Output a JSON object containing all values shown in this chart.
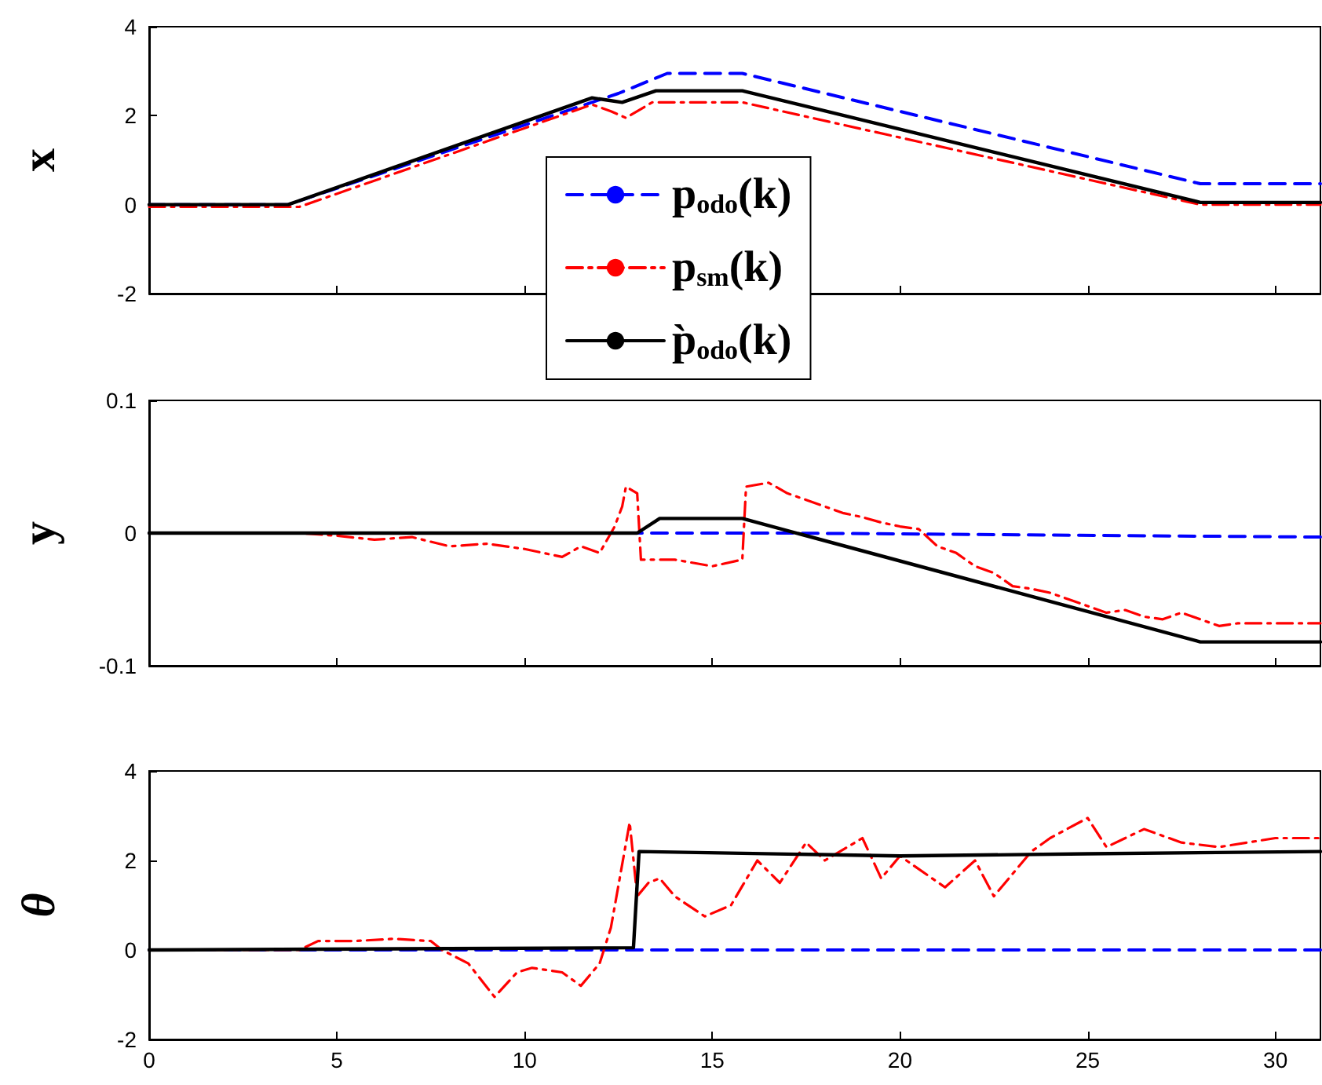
{
  "chart_data": [
    {
      "type": "line",
      "ylabel": "x",
      "xlim": [
        0,
        31.2
      ],
      "xticks": [
        0,
        5,
        10,
        15,
        20,
        25,
        30
      ],
      "ylim": [
        -2,
        4
      ],
      "yticks": [
        -2,
        0,
        2,
        4
      ],
      "tick_labels": "y",
      "grid": false,
      "marker": "none",
      "legend": "center",
      "series": [
        {
          "name": "p$_{odo}$(k)",
          "color": "#0000ff",
          "line_style": "dashed",
          "x": [
            0,
            3.7,
            12.5,
            13.8,
            15.8,
            28,
            31.2
          ],
          "values": [
            0,
            0,
            2.5,
            2.95,
            2.95,
            0.47,
            0.47
          ]
        },
        {
          "name": "p$_{sm}$(k)",
          "color": "#ff0000",
          "line_style": "dashdot",
          "x": [
            0,
            4,
            11.8,
            12.3,
            12.7,
            13.4,
            15.8,
            28,
            31.2
          ],
          "values": [
            -0.05,
            -0.05,
            2.25,
            2.1,
            1.95,
            2.3,
            2.3,
            0,
            0
          ]
        },
        {
          "name": "p̀$_{odo}$(k)",
          "color": "#000000",
          "line_style": "solid",
          "x": [
            0,
            3.7,
            11.8,
            12.2,
            12.6,
            13.5,
            15.8,
            28,
            31.2
          ],
          "values": [
            0,
            0,
            2.4,
            2.35,
            2.3,
            2.56,
            2.56,
            0.05,
            0.05
          ]
        }
      ]
    },
    {
      "type": "line",
      "ylabel": "y",
      "xlim": [
        0,
        31.2
      ],
      "xticks": [
        0,
        5,
        10,
        15,
        20,
        25,
        30
      ],
      "ylim": [
        -0.1,
        0.1
      ],
      "yticks": [
        -0.1,
        0,
        0.1
      ],
      "tick_labels": "y",
      "grid": false,
      "marker": "none",
      "series": [
        {
          "color": "#0000ff",
          "line_style": "dashed",
          "x": [
            0,
            17,
            31.2
          ],
          "values": [
            0,
            0,
            -0.003
          ]
        },
        {
          "color": "#ff0000",
          "line_style": "dashdot",
          "x": [
            0,
            4,
            5,
            6,
            7,
            8,
            9,
            10,
            11,
            11.5,
            12,
            12.4,
            12.6,
            12.7,
            13,
            13.1,
            14,
            15,
            15.8,
            15.9,
            16.5,
            17,
            17.5,
            18,
            18.5,
            19,
            19.5,
            20,
            20.5,
            21,
            21.5,
            22,
            22.5,
            23,
            23.5,
            24,
            24.5,
            25,
            25.5,
            26,
            26.5,
            27,
            27.5,
            28,
            28.5,
            29,
            30,
            31.2
          ],
          "values": [
            0,
            0,
            -0.002,
            -0.005,
            -0.003,
            -0.01,
            -0.008,
            -0.012,
            -0.018,
            -0.01,
            -0.015,
            0.005,
            0.02,
            0.035,
            0.03,
            -0.02,
            -0.02,
            -0.025,
            -0.02,
            0.035,
            0.038,
            0.03,
            0.025,
            0.02,
            0.015,
            0.012,
            0.008,
            0.005,
            0.003,
            -0.01,
            -0.015,
            -0.025,
            -0.03,
            -0.04,
            -0.042,
            -0.045,
            -0.05,
            -0.055,
            -0.06,
            -0.058,
            -0.063,
            -0.065,
            -0.06,
            -0.065,
            -0.07,
            -0.068,
            -0.068,
            -0.068
          ]
        },
        {
          "color": "#000000",
          "line_style": "solid",
          "x": [
            0,
            3.7,
            13,
            13.6,
            15.8,
            28,
            31.2
          ],
          "values": [
            0,
            0,
            0,
            0.011,
            0.011,
            -0.082,
            -0.082
          ]
        }
      ]
    },
    {
      "type": "line",
      "ylabel": "θ",
      "xlim": [
        0,
        31.2
      ],
      "xticks": [
        0,
        5,
        10,
        15,
        20,
        25,
        30
      ],
      "ylim": [
        -2,
        4
      ],
      "yticks": [
        -2,
        0,
        2,
        4
      ],
      "grid": false,
      "marker": "none",
      "series": [
        {
          "color": "#0000ff",
          "line_style": "dashed",
          "x": [
            0,
            31.2
          ],
          "values": [
            0,
            0
          ]
        },
        {
          "color": "#ff0000",
          "line_style": "dashdot",
          "x": [
            0,
            4,
            4.5,
            5.5,
            6.5,
            7.5,
            7.8,
            8.5,
            9.2,
            9.8,
            10.2,
            11,
            11.5,
            12,
            12.3,
            12.8,
            13,
            13.3,
            13.6,
            14,
            14.8,
            15.5,
            16.2,
            16.8,
            17.5,
            18,
            19,
            19.5,
            20,
            21.2,
            22,
            22.5,
            23.5,
            24,
            25,
            25.5,
            26.5,
            27.5,
            28.5,
            30,
            31.2
          ],
          "values": [
            0,
            0,
            0.2,
            0.2,
            0.25,
            0.2,
            0,
            -0.3,
            -1.05,
            -0.5,
            -0.4,
            -0.5,
            -0.8,
            -0.3,
            0.5,
            2.85,
            1.2,
            1.5,
            1.6,
            1.2,
            0.75,
            1,
            2,
            1.5,
            2.4,
            2,
            2.5,
            1.6,
            2.1,
            1.4,
            2,
            1.2,
            2.2,
            2.5,
            2.95,
            2.3,
            2.7,
            2.4,
            2.3,
            2.5,
            2.5
          ]
        },
        {
          "color": "#000000",
          "line_style": "solid",
          "x": [
            0,
            12.9,
            13.05,
            20,
            25,
            31.2
          ],
          "values": [
            0,
            0.05,
            2.2,
            2.1,
            2.15,
            2.2
          ]
        }
      ]
    }
  ]
}
